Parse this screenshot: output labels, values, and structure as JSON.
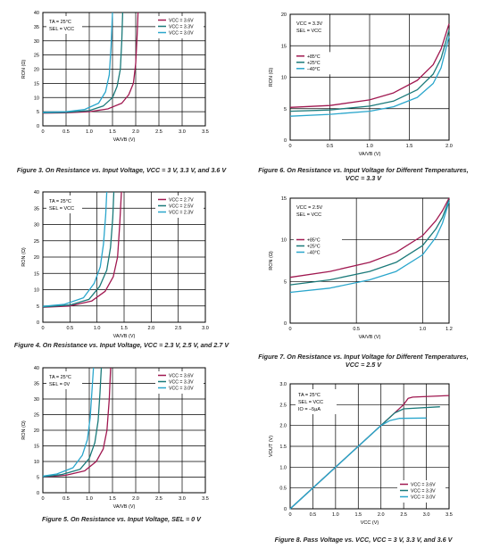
{
  "colors": {
    "c1": "#a01850",
    "c2": "#1a7a7a",
    "c3": "#2aa6cc"
  },
  "chart_data": [
    {
      "id": "fig3",
      "type": "line",
      "ylabel": "RON (Ω)",
      "xlabel": "VA/VB (V)",
      "xlim": [
        0,
        3.5
      ],
      "ylim": [
        0,
        40
      ],
      "xticks": [
        "0",
        "0.5",
        "1.0",
        "1.5",
        "2.0",
        "2.5",
        "3.0",
        "3.5"
      ],
      "yticks": [
        "0",
        "5",
        "10",
        "15",
        "20",
        "25",
        "30",
        "35",
        "40"
      ],
      "xtick_values": [
        0,
        0.5,
        1,
        1.5,
        2,
        2.5,
        3,
        3.5
      ],
      "ytick_values": [
        0,
        5,
        10,
        15,
        20,
        25,
        30,
        35,
        40
      ],
      "annotation": [
        "TA = 25°C",
        "SEL = VCC"
      ],
      "legend_entries": [
        "VCC = 3.6V",
        "VCC = 3.3V",
        "VCC = 3.0V"
      ],
      "legend_loc": "top-right",
      "series": [
        {
          "name": "VCC = 3.6V",
          "color": "c1",
          "x": [
            0,
            0.5,
            1.0,
            1.4,
            1.7,
            1.85,
            1.95,
            2.0,
            2.03,
            2.05
          ],
          "y": [
            4.5,
            4.6,
            5.0,
            6.0,
            8.0,
            11,
            15,
            22,
            32,
            40
          ]
        },
        {
          "name": "VCC = 3.3V",
          "color": "c2",
          "x": [
            0,
            0.5,
            1.0,
            1.3,
            1.5,
            1.6,
            1.67,
            1.7,
            1.72
          ],
          "y": [
            4.6,
            4.8,
            5.4,
            7.0,
            10,
            14,
            20,
            30,
            40
          ]
        },
        {
          "name": "VCC = 3.0V",
          "color": "c3",
          "x": [
            0,
            0.5,
            0.9,
            1.2,
            1.35,
            1.43,
            1.47,
            1.5
          ],
          "y": [
            4.8,
            5.0,
            5.8,
            8.0,
            12,
            18,
            28,
            40
          ]
        }
      ],
      "caption": "Figure 3. On Resistance vs. Input Voltage, VCC = 3 V, 3.3 V, and 3.6 V"
    },
    {
      "id": "fig4",
      "type": "line",
      "ylabel": "RON (Ω)",
      "xlabel": "VA/VB (V)",
      "xlim": [
        0,
        3.0
      ],
      "ylim": [
        0,
        40
      ],
      "xticks": [
        "0",
        "0.5",
        "1.0",
        "1.5",
        "2.0",
        "2.5",
        "3.0"
      ],
      "yticks": [
        "0",
        "5",
        "10",
        "15",
        "20",
        "25",
        "30",
        "35",
        "40"
      ],
      "xtick_values": [
        0,
        0.5,
        1,
        1.5,
        2,
        2.5,
        3
      ],
      "ytick_values": [
        0,
        5,
        10,
        15,
        20,
        25,
        30,
        35,
        40
      ],
      "annotation": [
        "TA = 25°C",
        "SEL = VCC"
      ],
      "legend_entries": [
        "VCC = 2.7V",
        "VCC = 2.5V",
        "VCC = 2.3V"
      ],
      "legend_loc": "top-right",
      "series": [
        {
          "name": "VCC = 2.7V",
          "color": "c1",
          "x": [
            0,
            0.5,
            0.9,
            1.15,
            1.3,
            1.38,
            1.42,
            1.45
          ],
          "y": [
            4.6,
            5.0,
            6.5,
            9.5,
            14,
            20,
            30,
            40
          ]
        },
        {
          "name": "VCC = 2.5V",
          "color": "c2",
          "x": [
            0,
            0.5,
            0.85,
            1.05,
            1.18,
            1.25,
            1.29,
            1.31
          ],
          "y": [
            4.7,
            5.3,
            7.0,
            11,
            16,
            23,
            32,
            40
          ]
        },
        {
          "name": "VCC = 2.3V",
          "color": "c3",
          "x": [
            0,
            0.4,
            0.75,
            0.95,
            1.06,
            1.12,
            1.16,
            1.18
          ],
          "y": [
            4.9,
            5.5,
            7.5,
            12,
            17,
            24,
            33,
            40
          ]
        }
      ],
      "caption": "Figure 4. On Resistance vs. Input Voltage, VCC = 2.3 V, 2.5 V, and 2.7 V"
    },
    {
      "id": "fig5",
      "type": "line",
      "ylabel": "RON (Ω)",
      "xlabel": "VA/VB (V)",
      "xlim": [
        0,
        3.5
      ],
      "ylim": [
        0,
        40
      ],
      "xticks": [
        "0",
        "0.5",
        "1.0",
        "1.5",
        "2.0",
        "2.5",
        "3.0",
        "3.5"
      ],
      "yticks": [
        "0",
        "5",
        "10",
        "15",
        "20",
        "25",
        "30",
        "35",
        "40"
      ],
      "xtick_values": [
        0,
        0.5,
        1,
        1.5,
        2,
        2.5,
        3,
        3.5
      ],
      "ytick_values": [
        0,
        5,
        10,
        15,
        20,
        25,
        30,
        35,
        40
      ],
      "annotation": [
        "TA = 25°C",
        "SEL = 0V"
      ],
      "legend_entries": [
        "VCC = 3.6V",
        "VCC = 3.3V",
        "VCC = 3.0V"
      ],
      "legend_loc": "top-right",
      "series": [
        {
          "name": "VCC = 3.6V",
          "color": "c1",
          "x": [
            0,
            0.5,
            0.9,
            1.15,
            1.3,
            1.38,
            1.43,
            1.46
          ],
          "y": [
            5.0,
            5.6,
            7.0,
            10,
            14,
            20,
            30,
            40
          ]
        },
        {
          "name": "VCC = 3.3V",
          "color": "c2",
          "x": [
            0,
            0.4,
            0.8,
            1.0,
            1.12,
            1.19,
            1.23,
            1.26
          ],
          "y": [
            5.1,
            5.8,
            7.5,
            11,
            16,
            23,
            32,
            40
          ]
        },
        {
          "name": "VCC = 3.0V",
          "color": "c3",
          "x": [
            0,
            0.3,
            0.65,
            0.85,
            0.96,
            1.02,
            1.06,
            1.09
          ],
          "y": [
            5.3,
            6.0,
            8.0,
            12,
            17,
            24,
            33,
            40
          ]
        }
      ],
      "caption": "Figure 5. On Resistance vs. Input Voltage, SEL = 0 V"
    },
    {
      "id": "fig6",
      "type": "line",
      "ylabel": "RON (Ω)",
      "xlabel": "VA/VB (V)",
      "xlim": [
        0,
        2.0
      ],
      "ylim": [
        0,
        20
      ],
      "xticks": [
        "0",
        "0.5",
        "1.0",
        "1.5",
        "2.0"
      ],
      "yticks": [
        "0",
        "5",
        "10",
        "15",
        "20"
      ],
      "xtick_values": [
        0,
        0.5,
        1,
        1.5,
        2
      ],
      "ytick_values": [
        0,
        5,
        10,
        15,
        20
      ],
      "annotation": [
        "VCC = 3.3V",
        "SEL = VCC"
      ],
      "legend_entries": [
        "+85°C",
        "+25°C",
        "–40°C"
      ],
      "legend_loc": "center-left",
      "series": [
        {
          "name": "+85°C",
          "color": "c1",
          "x": [
            0,
            0.5,
            1.0,
            1.3,
            1.6,
            1.8,
            1.9,
            2.0
          ],
          "y": [
            5.2,
            5.5,
            6.4,
            7.5,
            9.5,
            12,
            14.5,
            18.5
          ]
        },
        {
          "name": "+25°C",
          "color": "c2",
          "x": [
            0,
            0.5,
            1.0,
            1.3,
            1.6,
            1.8,
            1.9,
            2.0
          ],
          "y": [
            4.6,
            4.8,
            5.4,
            6.2,
            8.0,
            10.5,
            13,
            17.5
          ]
        },
        {
          "name": "–40°C",
          "color": "c3",
          "x": [
            0,
            0.5,
            1.0,
            1.3,
            1.6,
            1.8,
            1.9,
            2.0
          ],
          "y": [
            3.8,
            4.1,
            4.6,
            5.3,
            6.8,
            9.0,
            11.5,
            16.5
          ]
        }
      ],
      "caption": "Figure 6. On Resistance vs. Input Voltage for Different Temperatures, VCC = 3.3 V"
    },
    {
      "id": "fig7",
      "type": "line",
      "ylabel": "RON (Ω)",
      "xlabel": "VA/VB (V)",
      "xlim": [
        0,
        1.2
      ],
      "ylim": [
        0,
        15
      ],
      "xticks": [
        "0",
        "0.5",
        "1.0",
        "1.2"
      ],
      "yticks": [
        "0",
        "5",
        "10",
        "15"
      ],
      "xtick_values": [
        0,
        0.5,
        1.0,
        1.2
      ],
      "ytick_values": [
        0,
        5,
        10,
        15
      ],
      "annotation": [
        "VCC = 2.5V",
        "SEL = VCC"
      ],
      "legend_entries": [
        "+85°C",
        "+25°C",
        "–40°C"
      ],
      "legend_loc": "center-left",
      "series": [
        {
          "name": "+85°C",
          "color": "c1",
          "x": [
            0,
            0.3,
            0.6,
            0.8,
            1.0,
            1.1,
            1.15,
            1.2
          ],
          "y": [
            5.5,
            6.2,
            7.3,
            8.5,
            10.5,
            12.3,
            13.5,
            15
          ]
        },
        {
          "name": "+25°C",
          "color": "c2",
          "x": [
            0,
            0.3,
            0.6,
            0.8,
            1.0,
            1.1,
            1.15,
            1.2
          ],
          "y": [
            4.6,
            5.2,
            6.2,
            7.3,
            9.3,
            11.3,
            12.7,
            14.8
          ]
        },
        {
          "name": "–40°C",
          "color": "c3",
          "x": [
            0,
            0.3,
            0.6,
            0.8,
            1.0,
            1.1,
            1.15,
            1.2
          ],
          "y": [
            3.7,
            4.2,
            5.2,
            6.2,
            8.2,
            10.3,
            12.0,
            14.6
          ]
        }
      ],
      "caption": "Figure 7. On Resistance vs. Input Voltage for Different Temperatures, VCC = 2.5 V"
    },
    {
      "id": "fig8",
      "type": "line",
      "ylabel": "VOUT (V)",
      "xlabel": "VCC (V)",
      "xlim": [
        0,
        3.5
      ],
      "ylim": [
        0,
        3.0
      ],
      "xticks": [
        "0",
        "0.5",
        "1.0",
        "1.5",
        "2.0",
        "2.5",
        "3.0",
        "3.5"
      ],
      "yticks": [
        "0",
        "0.5",
        "1.0",
        "1.5",
        "2.0",
        "2.5",
        "3.0"
      ],
      "xtick_values": [
        0,
        0.5,
        1,
        1.5,
        2,
        2.5,
        3,
        3.5
      ],
      "ytick_values": [
        0,
        0.5,
        1,
        1.5,
        2,
        2.5,
        3
      ],
      "annotation": [
        "TA = 25°C",
        "SEL = VCC",
        "IO = –5µA"
      ],
      "legend_entries": [
        "VCC = 3.6V",
        "VCC = 3.3V",
        "VCC = 3.0V"
      ],
      "legend_loc": "bottom-right",
      "series": [
        {
          "name": "VCC = 3.6V",
          "color": "c1",
          "x": [
            0,
            2.2,
            2.5,
            2.6,
            2.7,
            3.5
          ],
          "y": [
            0,
            2.2,
            2.5,
            2.65,
            2.68,
            2.72
          ]
        },
        {
          "name": "VCC = 3.3V",
          "color": "c2",
          "x": [
            0,
            2.1,
            2.3,
            2.5,
            3.3
          ],
          "y": [
            0,
            2.1,
            2.3,
            2.4,
            2.45
          ]
        },
        {
          "name": "VCC = 3.0V",
          "color": "c3",
          "x": [
            0,
            2.0,
            2.2,
            2.4,
            3.0
          ],
          "y": [
            0,
            2.0,
            2.12,
            2.17,
            2.18
          ]
        }
      ],
      "caption": "Figure 8. Pass Voltage vs. VCC, VCC = 3 V, 3.3 V, and 3.6 V"
    }
  ]
}
